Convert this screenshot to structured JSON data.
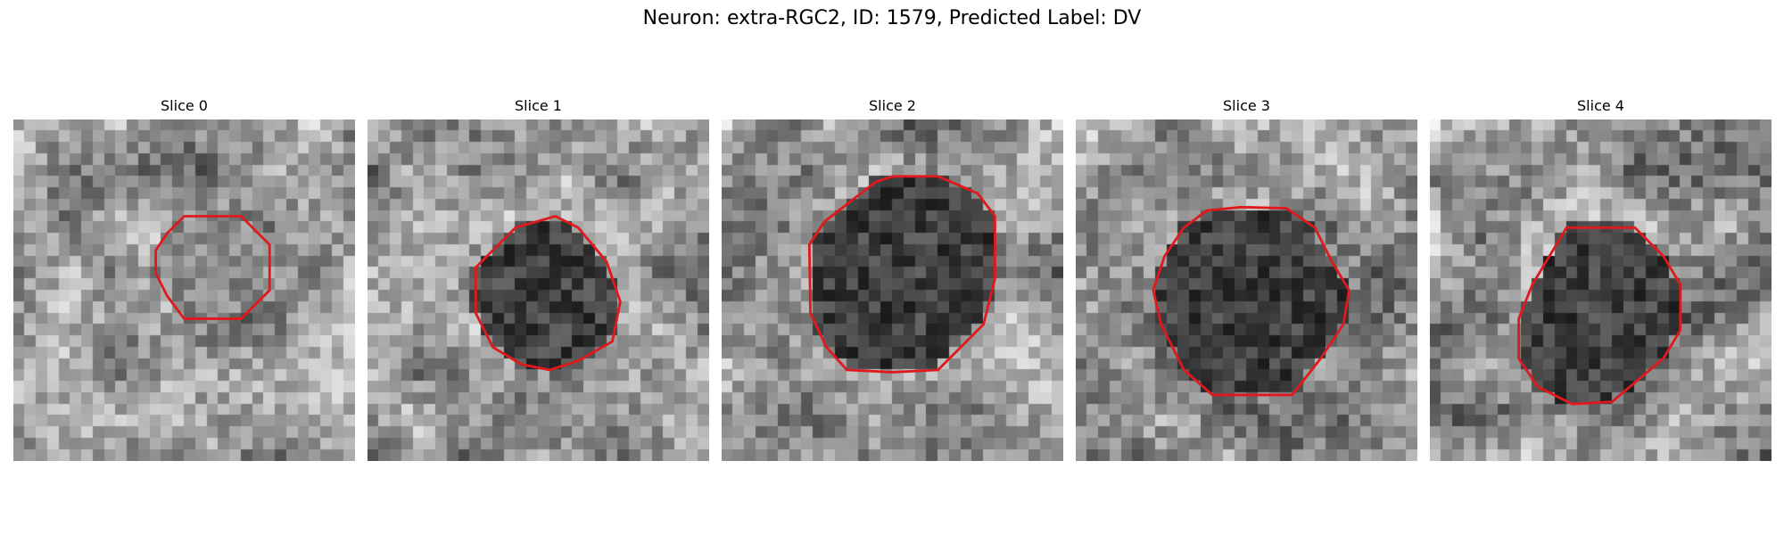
{
  "figure": {
    "title": "Neuron: extra-RGC2, ID: 1579, Predicted Label: DV"
  },
  "panels": [
    {
      "title": "Slice 0",
      "grid": 30,
      "contour_color": "#e0191c",
      "contour": [
        [
          15,
          8.5
        ],
        [
          20,
          8.5
        ],
        [
          22.5,
          11
        ],
        [
          22.5,
          15
        ],
        [
          20,
          17.5
        ],
        [
          15,
          17.5
        ],
        [
          13.5,
          15.5
        ],
        [
          12.5,
          13.5
        ],
        [
          12.5,
          11.5
        ],
        [
          13.5,
          10
        ]
      ]
    },
    {
      "title": "Slice 1",
      "grid": 30,
      "contour_color": "#e0191c",
      "contour": [
        [
          13,
          9.5
        ],
        [
          16.5,
          8.5
        ],
        [
          18.5,
          9.5
        ],
        [
          21,
          12.5
        ],
        [
          22.2,
          16
        ],
        [
          21.5,
          19.5
        ],
        [
          18.5,
          21.2
        ],
        [
          16,
          22
        ],
        [
          13.5,
          21.5
        ],
        [
          11,
          20
        ],
        [
          9.5,
          17
        ],
        [
          9.5,
          13
        ]
      ]
    },
    {
      "title": "Slice 2",
      "grid": 30,
      "contour_color": "#e0191c",
      "contour": [
        [
          13.5,
          5.5
        ],
        [
          15,
          5
        ],
        [
          19,
          5
        ],
        [
          22.5,
          6.5
        ],
        [
          24,
          8.5
        ],
        [
          24,
          14
        ],
        [
          23,
          18
        ],
        [
          19,
          22
        ],
        [
          15,
          22.2
        ],
        [
          11,
          22
        ],
        [
          9.2,
          20
        ],
        [
          7.8,
          17
        ],
        [
          7.7,
          11
        ],
        [
          9,
          9
        ]
      ]
    },
    {
      "title": "Slice 3",
      "grid": 30,
      "contour_color": "#e0191c",
      "contour": [
        [
          11.5,
          8
        ],
        [
          14.5,
          7.7
        ],
        [
          18.5,
          7.8
        ],
        [
          21,
          9.5
        ],
        [
          22.5,
          12.5
        ],
        [
          24,
          15
        ],
        [
          23.5,
          18
        ],
        [
          21.5,
          21
        ],
        [
          19,
          24.2
        ],
        [
          12,
          24.2
        ],
        [
          9.5,
          22
        ],
        [
          7.5,
          18
        ],
        [
          6.8,
          15
        ],
        [
          7.8,
          12
        ],
        [
          9.5,
          9.5
        ]
      ]
    },
    {
      "title": "Slice 4",
      "grid": 30,
      "contour_color": "#e0191c",
      "contour": [
        [
          12,
          9.5
        ],
        [
          18,
          9.5
        ],
        [
          20.5,
          12
        ],
        [
          22,
          14.5
        ],
        [
          22,
          18.5
        ],
        [
          20.5,
          21
        ],
        [
          16,
          24.8
        ],
        [
          12.5,
          25
        ],
        [
          9.5,
          23.5
        ],
        [
          7.8,
          21
        ],
        [
          7.8,
          17.5
        ],
        [
          9,
          14.5
        ],
        [
          10.5,
          12
        ]
      ]
    }
  ]
}
